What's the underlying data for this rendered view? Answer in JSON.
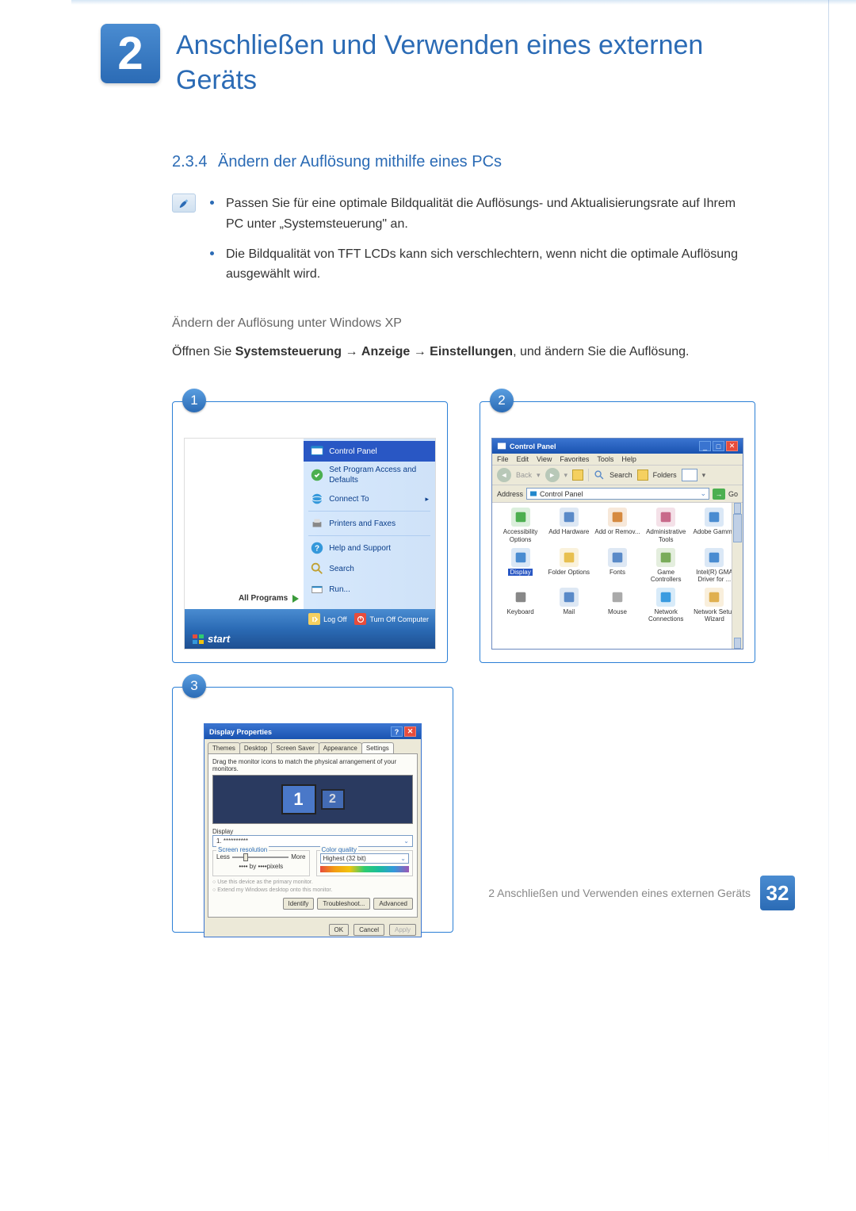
{
  "theme": {
    "brand_color": "#2b6bb5",
    "accent_gradient_from": "#4a8cd1",
    "accent_gradient_to": "#2b6bb5",
    "xp_blue": "#3a74d0",
    "xp_tan": "#ece9d8",
    "page_bg": "#ffffff",
    "muted_text": "#888888"
  },
  "chapter": {
    "number": "2",
    "title": "Anschließen und Verwenden eines externen Geräts"
  },
  "section": {
    "number": "2.3.4",
    "title": "Ändern der Auflösung mithilfe eines PCs"
  },
  "notes": [
    "Passen Sie für eine optimale Bildqualität die Auflösungs- und Aktualisierungsrate auf Ihrem PC unter „Systemsteuerung\" an.",
    "Die Bildqualität von TFT LCDs kann sich verschlechtern, wenn nicht die optimale Auflösung ausgewählt wird."
  ],
  "subheading": "Ändern der Auflösung unter Windows XP",
  "instruction": {
    "prefix": "Öffnen Sie ",
    "path1": "Systemsteuerung",
    "arrow": " → ",
    "path2": "Anzeige",
    "path3": "Einstellungen",
    "suffix": ", und ändern Sie die Auflösung."
  },
  "screenshots": {
    "step1": {
      "badge": "1",
      "start_menu": {
        "highlighted": {
          "icon": "control-panel-icon",
          "label": "Control Panel"
        },
        "items": [
          {
            "icon": "program-access-icon",
            "label": "Set Program Access and Defaults"
          },
          {
            "icon": "connect-icon",
            "label": "Connect To",
            "arrow": true
          }
        ],
        "items2": [
          {
            "icon": "printer-icon",
            "label": "Printers and Faxes"
          }
        ],
        "items3": [
          {
            "icon": "help-icon",
            "label": "Help and Support"
          },
          {
            "icon": "search-icon",
            "label": "Search"
          },
          {
            "icon": "run-icon",
            "label": "Run..."
          }
        ],
        "all_programs": "All Programs",
        "logoff": "Log Off",
        "shutdown": "Turn Off Computer",
        "start_button": "start"
      }
    },
    "step2": {
      "badge": "2",
      "window": {
        "title": "Control Panel",
        "menu": [
          "File",
          "Edit",
          "View",
          "Favorites",
          "Tools",
          "Help"
        ],
        "toolbar": {
          "back": "Back",
          "search": "Search",
          "folders": "Folders"
        },
        "address_label": "Address",
        "address_value": "Control Panel",
        "go": "Go",
        "icons": [
          {
            "name": "accessibility-icon",
            "label": "Accessibility Options",
            "color": "#4caf50"
          },
          {
            "name": "add-hardware-icon",
            "label": "Add Hardware",
            "color": "#5a8ac8"
          },
          {
            "name": "add-remove-icon",
            "label": "Add or Remov...",
            "color": "#d68a40"
          },
          {
            "name": "admin-tools-icon",
            "label": "Administrative Tools",
            "color": "#c86a8a"
          },
          {
            "name": "adobe-gamma-icon",
            "label": "Adobe Gamma",
            "color": "#4a8cd1"
          },
          {
            "name": "display-icon",
            "label": "Display",
            "selected": true,
            "color": "#4a8cd1"
          },
          {
            "name": "folder-options-icon",
            "label": "Folder Options",
            "color": "#e8c050"
          },
          {
            "name": "fonts-icon",
            "label": "Fonts",
            "color": "#5a8ac8"
          },
          {
            "name": "game-controllers-icon",
            "label": "Game Controllers",
            "color": "#7aac5a"
          },
          {
            "name": "intel-gma-icon",
            "label": "Intel(R) GMA Driver for ...",
            "color": "#4a8cd1"
          },
          {
            "name": "keyboard-icon",
            "label": "Keyboard",
            "color": "#888"
          },
          {
            "name": "mail-icon",
            "label": "Mail",
            "color": "#5a8ac8"
          },
          {
            "name": "mouse-icon",
            "label": "Mouse",
            "color": "#aaa"
          },
          {
            "name": "network-connections-icon",
            "label": "Network Connections",
            "color": "#3a9be0"
          },
          {
            "name": "network-setup-icon",
            "label": "Network Setup Wizard",
            "color": "#e0b050"
          }
        ]
      }
    },
    "step3": {
      "badge": "3",
      "dialog": {
        "title": "Display Properties",
        "tabs": [
          "Themes",
          "Desktop",
          "Screen Saver",
          "Appearance",
          "Settings"
        ],
        "active_tab": "Settings",
        "hint": "Drag the monitor icons to match the physical arrangement of your monitors.",
        "monitor1": "1",
        "monitor2": "2",
        "display_label": "Display",
        "display_value": "1. **********",
        "res_group": "Screen resolution",
        "res_less": "Less",
        "res_more": "More",
        "res_value": "•••• by ••••pixels",
        "cq_group": "Color quality",
        "cq_value": "Highest (32 bit)",
        "check1": "Use this device as the primary monitor.",
        "check2": "Extend my Windows desktop onto this monitor.",
        "btn_identify": "Identify",
        "btn_trouble": "Troubleshoot...",
        "btn_adv": "Advanced",
        "btn_ok": "OK",
        "btn_cancel": "Cancel",
        "btn_apply": "Apply"
      }
    }
  },
  "footer": {
    "text": "2 Anschließen und Verwenden eines externen Geräts",
    "page": "32"
  }
}
